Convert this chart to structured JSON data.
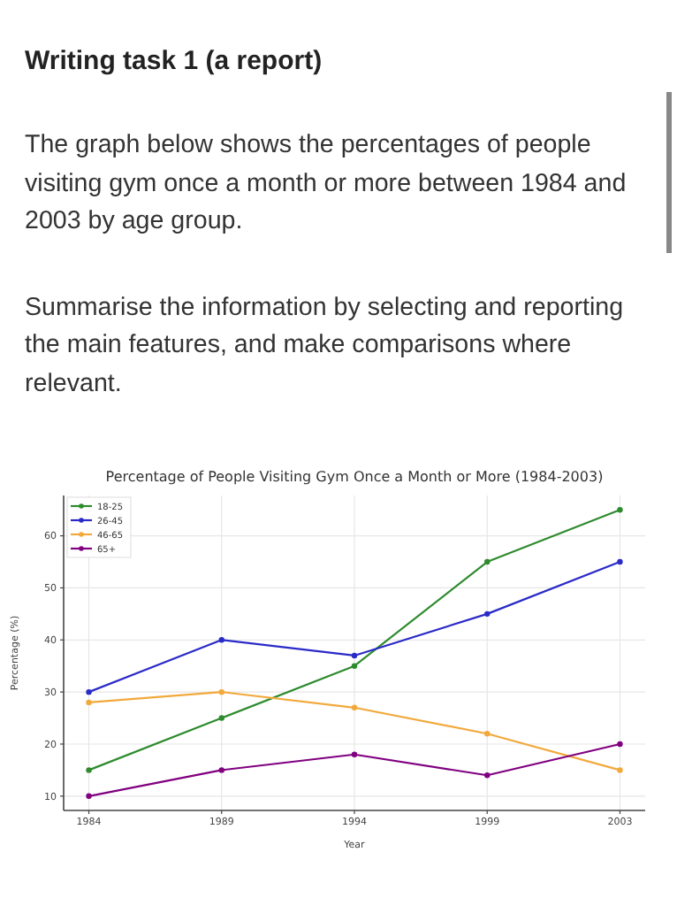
{
  "chart_data": {
    "type": "line",
    "title": "Percentage of People Visiting Gym Once a Month or More (1984-2003)",
    "annotations": [
      "Writing task 1 (a report)",
      "The graph below shows the percentages of people visiting gym once a month or more between 1984 and 2003 by age group.",
      "Summarise the information by selecting and reporting the main features, and make comparisons where relevant."
    ],
    "xlabel": "Year",
    "ylabel": "Percentage (%)",
    "categories": [
      "1984",
      "1989",
      "1994",
      "1999",
      "2003"
    ],
    "series": [
      {
        "name": "18-25",
        "color": "#2e8b2e",
        "values": [
          15,
          25,
          35,
          55,
          65
        ]
      },
      {
        "name": "26-45",
        "color": "#2a2ac8",
        "values": [
          30,
          40,
          37,
          45,
          55
        ]
      },
      {
        "name": "46-65",
        "color": "#f2a93b",
        "values": [
          28,
          30,
          27,
          22,
          15
        ]
      },
      {
        "name": "65+",
        "color": "#800080",
        "values": [
          10,
          15,
          18,
          14,
          20
        ]
      }
    ],
    "ylim": [
      7.25,
      67.75
    ],
    "yticks": [
      10,
      20,
      30,
      40,
      50,
      60
    ],
    "grid": true,
    "legend": "top left",
    "marker": "circle",
    "line_style": "solid"
  }
}
